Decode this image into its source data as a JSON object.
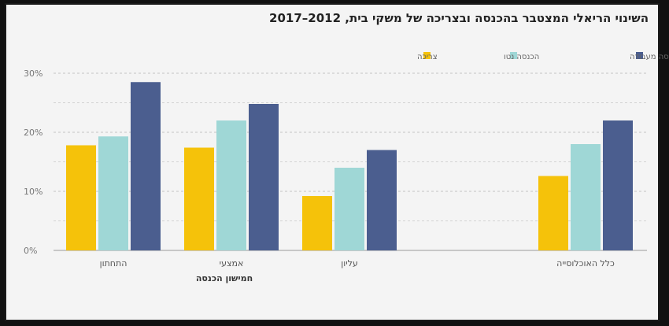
{
  "title": "השינוי הריאלי המצטבר בהכנסה ובצריכה של משקי בית, 2012–2017",
  "chart_data": {
    "type": "bar",
    "xlabel": "חמישון הכנסה",
    "ylabel": "",
    "yticks": [
      "0%",
      "10%",
      "20%",
      "30%"
    ],
    "ylim": [
      0,
      30
    ],
    "grid": true,
    "legend_position": "top-right",
    "categories": [
      "התחתון",
      "אמצעי",
      "עליון",
      "כלל האוכלוסייה"
    ],
    "series": [
      {
        "name": "צריכה",
        "color": "#f5c20a",
        "values": [
          17.8,
          17.4,
          9.2,
          12.6
        ]
      },
      {
        "name": "הכנסה נטו",
        "color": "#9fd7d6",
        "values": [
          19.3,
          22.0,
          14.0,
          18.0
        ]
      },
      {
        "name": "הכנסה מעבודה",
        "color": "#4b5e8f",
        "values": [
          28.5,
          24.8,
          17.0,
          22.0
        ]
      }
    ]
  }
}
